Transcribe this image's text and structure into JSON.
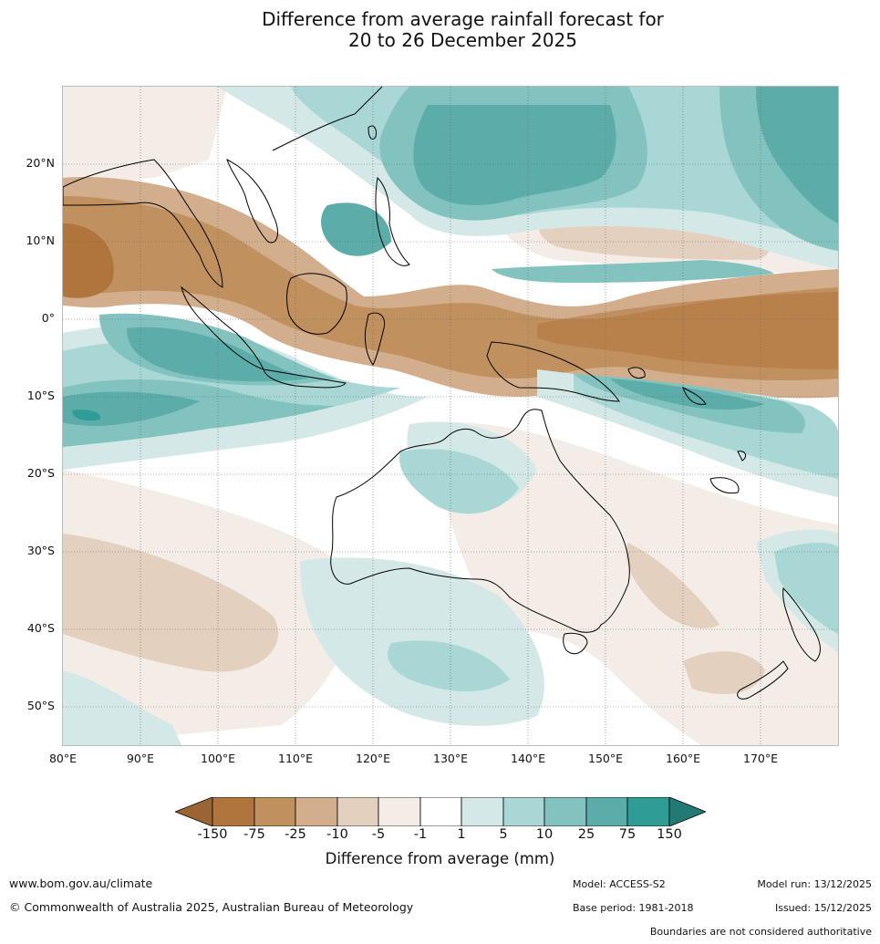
{
  "title": {
    "line1": "Difference from average rainfall forecast for",
    "line2": "20 to 26 December 2025"
  },
  "lat_labels": [
    "20°N",
    "10°N",
    "0°",
    "10°S",
    "20°S",
    "30°S",
    "40°S",
    "50°S"
  ],
  "lon_labels": [
    "80°E",
    "90°E",
    "100°E",
    "110°E",
    "120°E",
    "130°E",
    "140°E",
    "150°E",
    "160°E",
    "170°E"
  ],
  "legend": {
    "title": "Difference from average (mm)",
    "ticks": [
      "-150",
      "-75",
      "-25",
      "-10",
      "-5",
      "-1",
      "1",
      "5",
      "10",
      "25",
      "75",
      "150"
    ],
    "colors": [
      "#9a6434",
      "#b0753d",
      "#c0905f",
      "#d2ae8c",
      "#e4d0be",
      "#f4ece6",
      "#ffffff",
      "#d4e9e7",
      "#a9d7d5",
      "#82c3c0",
      "#5cacaa",
      "#2f9c95",
      "#237a74"
    ]
  },
  "footer": {
    "website": "www.bom.gov.au/climate",
    "copyright": "© Commonwealth of Australia 2025, Australian Bureau of Meteorology",
    "model": "Model: ACCESS-S2",
    "base_period": "Base period: 1981-2018",
    "model_run": "Model run: 13/12/2025",
    "issued": "Issued: 15/12/2025",
    "disclaimer": "Boundaries are not considered authoritative"
  }
}
